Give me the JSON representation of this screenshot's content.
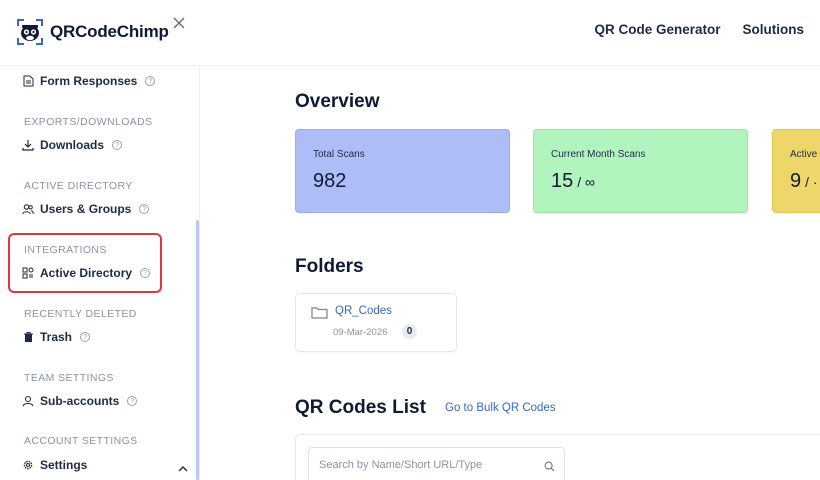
{
  "header": {
    "logo_text": "QRCodeChimp",
    "nav": [
      "QR Code Generator",
      "Solutions"
    ]
  },
  "sidebar": {
    "form_responses": "Form Responses",
    "sections": {
      "exports": "EXPORTS/DOWNLOADS",
      "active_directory": "ACTIVE DIRECTORY",
      "integrations": "INTEGRATIONS",
      "recently_deleted": "RECENTLY DELETED",
      "team_settings": "TEAM SETTINGS",
      "account_settings": "ACCOUNT SETTINGS"
    },
    "items": {
      "downloads": "Downloads",
      "users_groups": "Users & Groups",
      "active_directory": "Active Directory",
      "trash": "Trash",
      "sub_accounts": "Sub-accounts",
      "settings": "Settings"
    },
    "help_glyph": "?"
  },
  "overview": {
    "title": "Overview",
    "cards": [
      {
        "label": "Total Scans",
        "value": "982",
        "suffix": ""
      },
      {
        "label": "Current Month Scans",
        "value": "15",
        "suffix": "/ ∞"
      },
      {
        "label": "Active",
        "value": "9",
        "suffix": "/ ·"
      }
    ]
  },
  "folders": {
    "title": "Folders",
    "items": [
      {
        "name": "QR_Codes",
        "date": "09-Mar-2026",
        "count": "0"
      }
    ]
  },
  "qr_list": {
    "title": "QR Codes List",
    "bulk_link": "Go to Bulk QR Codes",
    "search_placeholder": "Search by Name/Short URL/Type"
  },
  "colors": {
    "card_blue": "#aebdf7",
    "card_green": "#b1f4bd",
    "card_yellow": "#efd66a",
    "link": "#3a66c6",
    "highlight": "#e0373f"
  }
}
